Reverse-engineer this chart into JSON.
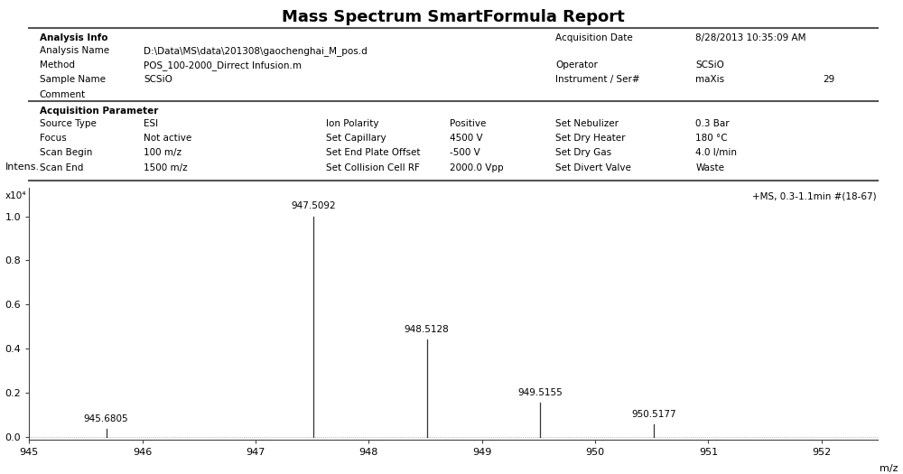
{
  "title": "Mass Spectrum SmartFormula Report",
  "analysis_info_label": "Analysis Info",
  "left_rows": [
    [
      "Analysis Name",
      "D:\\Data\\MS\\data\\201308\\gaochenghai_M_pos.d"
    ],
    [
      "Method",
      "POS_100-2000_Dirrect Infusion.m"
    ],
    [
      "Sample Name",
      "SCSiO"
    ],
    [
      "Comment",
      ""
    ]
  ],
  "acq_date_label": "Acquisition Date",
  "acq_date_value": "8/28/2013 10:35:09 AM",
  "right_rows": [
    [
      "Operator",
      "SCSiO",
      ""
    ],
    [
      "Instrument / Ser#",
      "maXis",
      "29"
    ]
  ],
  "acq_param_label": "Acquisition Parameter",
  "acq_col1": [
    [
      "Source Type",
      "ESI"
    ],
    [
      "Focus",
      "Not active"
    ],
    [
      "Scan Begin",
      "100 m/z"
    ],
    [
      "Scan End",
      "1500 m/z"
    ]
  ],
  "acq_col2": [
    [
      "Ion Polarity",
      "Positive"
    ],
    [
      "Set Capillary",
      "4500 V"
    ],
    [
      "Set End Plate Offset",
      "-500 V"
    ],
    [
      "Set Collision Cell RF",
      "2000.0 Vpp"
    ]
  ],
  "acq_col3": [
    [
      "Set Nebulizer",
      "0.3 Bar"
    ],
    [
      "Set Dry Heater",
      "180 °C"
    ],
    [
      "Set Dry Gas",
      "4.0 l/min"
    ],
    [
      "Set Divert Valve",
      "Waste"
    ]
  ],
  "spectrum_label": "+MS, 0.3-1.1min #(18-67)",
  "peaks": [
    {
      "mz": 945.6805,
      "intensity": 0.035,
      "label": "945.6805"
    },
    {
      "mz": 947.5092,
      "intensity": 1.0,
      "label": "947.5092"
    },
    {
      "mz": 948.5128,
      "intensity": 0.44,
      "label": "948.5128"
    },
    {
      "mz": 949.5155,
      "intensity": 0.155,
      "label": "949.5155"
    },
    {
      "mz": 950.5177,
      "intensity": 0.055,
      "label": "950.5177"
    }
  ],
  "xmin": 945,
  "xmax": 952.5,
  "xticks": [
    945,
    946,
    947,
    948,
    949,
    950,
    951,
    952
  ],
  "ylabel_top": "Intens.",
  "ylabel_scale": "x10⁴",
  "yticks": [
    0.0,
    0.2,
    0.4,
    0.6,
    0.8,
    1.0
  ],
  "xlabel": "m/z",
  "bg_color": "#ffffff",
  "text_color": "#000000",
  "divider_color": "#555555",
  "peak_color": "#333333"
}
